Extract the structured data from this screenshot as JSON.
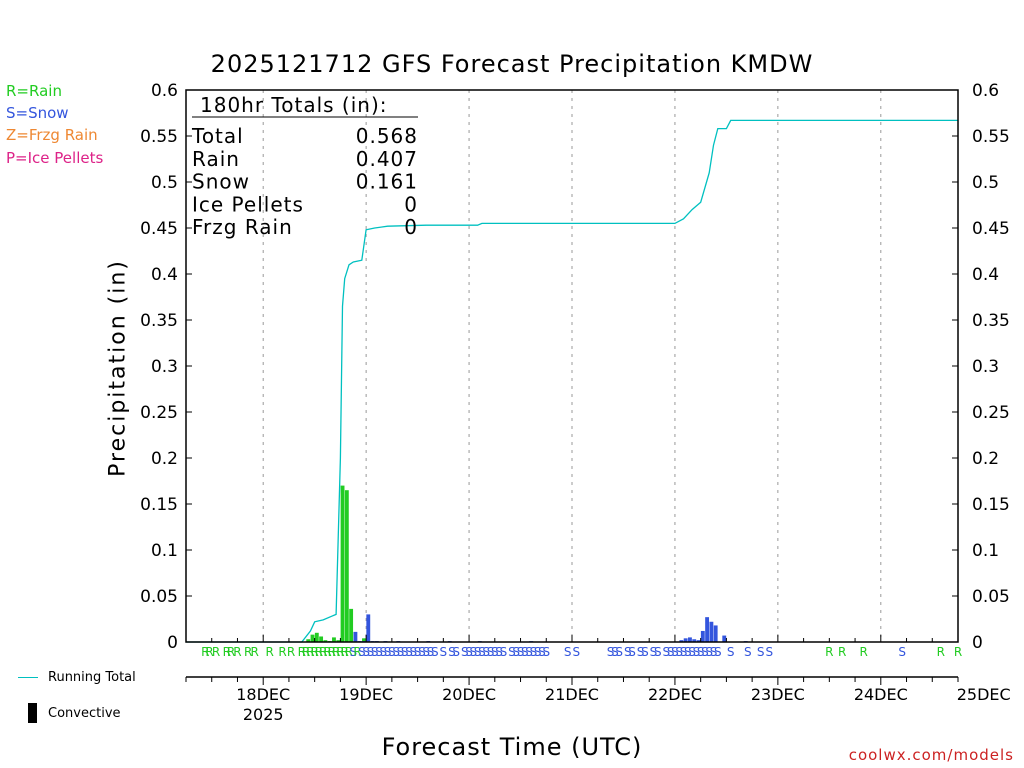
{
  "chart_data": {
    "type": "bar",
    "title": "2025121712 GFS Forecast Precipitation KMDW",
    "ylabel": "Precipitation (in)",
    "xlabel": "Forecast Time (UTC)",
    "ylim": [
      0,
      0.6
    ],
    "xlim_hours": [
      -6,
      174
    ],
    "y_ticks": [
      "0",
      "0.05",
      "0.1",
      "0.15",
      "0.2",
      "0.25",
      "0.3",
      "0.35",
      "0.4",
      "0.45",
      "0.5",
      "0.55",
      "0.6"
    ],
    "x_ticks": [
      {
        "label": "18DEC",
        "sub": "2025",
        "hour": 12
      },
      {
        "label": "19DEC",
        "sub": "",
        "hour": 36
      },
      {
        "label": "20DEC",
        "sub": "",
        "hour": 60
      },
      {
        "label": "21DEC",
        "sub": "",
        "hour": 84
      },
      {
        "label": "22DEC",
        "sub": "",
        "hour": 108
      },
      {
        "label": "23DEC",
        "sub": "",
        "hour": 132
      },
      {
        "label": "24DEC",
        "sub": "",
        "hour": 156
      },
      {
        "label": "25DEC",
        "sub": "",
        "hour": 180
      }
    ],
    "legend": [
      {
        "label": "R=Rain",
        "color": "#22cc22"
      },
      {
        "label": "S=Snow",
        "color": "#3355dd"
      },
      {
        "label": "Z=Frzg Rain",
        "color": "#ee8833"
      },
      {
        "label": "P=Ice Pellets",
        "color": "#dd2288"
      }
    ],
    "totals": {
      "header": "180hr Totals (in):",
      "rows": [
        {
          "label": "Total",
          "value": "0.568"
        },
        {
          "label": "Rain",
          "value": "0.407"
        },
        {
          "label": "Snow",
          "value": "0.161"
        },
        {
          "label": "Ice Pellets",
          "value": "0"
        },
        {
          "label": "Frzg Rain",
          "value": "0"
        }
      ]
    },
    "series": [
      {
        "name": "Rain",
        "color": "#22cc22",
        "points": [
          {
            "x": 22.5,
            "y": 0.003
          },
          {
            "x": 23.5,
            "y": 0.008
          },
          {
            "x": 24.5,
            "y": 0.01
          },
          {
            "x": 25.5,
            "y": 0.006
          },
          {
            "x": 26.5,
            "y": 0.002
          },
          {
            "x": 27.5,
            "y": 0.001
          },
          {
            "x": 28.5,
            "y": 0.005
          },
          {
            "x": 29.5,
            "y": 0.002
          },
          {
            "x": 30.5,
            "y": 0.17
          },
          {
            "x": 31.5,
            "y": 0.165
          },
          {
            "x": 32.5,
            "y": 0.036
          },
          {
            "x": 33.5,
            "y": 0.001
          },
          {
            "x": 35.5,
            "y": 0.004
          }
        ]
      },
      {
        "name": "Snow",
        "color": "#3355dd",
        "points": [
          {
            "x": 33.5,
            "y": 0.011
          },
          {
            "x": 34.5,
            "y": 0.001
          },
          {
            "x": 35.5,
            "y": 0.001
          },
          {
            "x": 36.5,
            "y": 0.03
          },
          {
            "x": 37.5,
            "y": 0.001
          },
          {
            "x": 38.5,
            "y": 0.001
          },
          {
            "x": 40.5,
            "y": 0.001
          },
          {
            "x": 43.5,
            "y": 0.001
          },
          {
            "x": 50.5,
            "y": 0.001
          },
          {
            "x": 55.5,
            "y": 0.001
          },
          {
            "x": 62.5,
            "y": 0.001
          },
          {
            "x": 74.5,
            "y": 0.001
          },
          {
            "x": 109.5,
            "y": 0.002
          },
          {
            "x": 110.5,
            "y": 0.004
          },
          {
            "x": 111.5,
            "y": 0.005
          },
          {
            "x": 112.5,
            "y": 0.003
          },
          {
            "x": 113.5,
            "y": 0.002
          },
          {
            "x": 114.5,
            "y": 0.012
          },
          {
            "x": 115.5,
            "y": 0.027
          },
          {
            "x": 116.5,
            "y": 0.022
          },
          {
            "x": 117.5,
            "y": 0.018
          },
          {
            "x": 119.5,
            "y": 0.007
          },
          {
            "x": 124.5,
            "y": 0.001
          }
        ]
      }
    ],
    "running_total": {
      "name": "Running Total",
      "color": "#00c0c0",
      "points": [
        {
          "x": -6,
          "y": 0
        },
        {
          "x": 21,
          "y": 0
        },
        {
          "x": 23,
          "y": 0.012
        },
        {
          "x": 24,
          "y": 0.022
        },
        {
          "x": 26,
          "y": 0.024
        },
        {
          "x": 28,
          "y": 0.028
        },
        {
          "x": 29,
          "y": 0.03
        },
        {
          "x": 30,
          "y": 0.2
        },
        {
          "x": 30.5,
          "y": 0.365
        },
        {
          "x": 31,
          "y": 0.395
        },
        {
          "x": 32,
          "y": 0.41
        },
        {
          "x": 33,
          "y": 0.413
        },
        {
          "x": 35,
          "y": 0.415
        },
        {
          "x": 36,
          "y": 0.448
        },
        {
          "x": 38,
          "y": 0.45
        },
        {
          "x": 41,
          "y": 0.452
        },
        {
          "x": 50,
          "y": 0.453
        },
        {
          "x": 62,
          "y": 0.453
        },
        {
          "x": 63,
          "y": 0.455
        },
        {
          "x": 80,
          "y": 0.455
        },
        {
          "x": 108,
          "y": 0.455
        },
        {
          "x": 110,
          "y": 0.46
        },
        {
          "x": 112,
          "y": 0.47
        },
        {
          "x": 114,
          "y": 0.478
        },
        {
          "x": 116,
          "y": 0.51
        },
        {
          "x": 117,
          "y": 0.54
        },
        {
          "x": 118,
          "y": 0.558
        },
        {
          "x": 120,
          "y": 0.558
        },
        {
          "x": 121,
          "y": 0.567
        },
        {
          "x": 174,
          "y": 0.567
        }
      ]
    },
    "precip_type_markers": [
      {
        "x": -1.5,
        "type": "R"
      },
      {
        "x": -0.5,
        "type": "R"
      },
      {
        "x": 1,
        "type": "R"
      },
      {
        "x": 3.5,
        "type": "R"
      },
      {
        "x": 4.5,
        "type": "R"
      },
      {
        "x": 6,
        "type": "R"
      },
      {
        "x": 8.5,
        "type": "R"
      },
      {
        "x": 10,
        "type": "R"
      },
      {
        "x": 13.5,
        "type": "R"
      },
      {
        "x": 16.5,
        "type": "R"
      },
      {
        "x": 18.5,
        "type": "R"
      },
      {
        "x": 21,
        "type": "R"
      },
      {
        "x": 22,
        "type": "R"
      },
      {
        "x": 23,
        "type": "R"
      },
      {
        "x": 24,
        "type": "R"
      },
      {
        "x": 25,
        "type": "R"
      },
      {
        "x": 26,
        "type": "R"
      },
      {
        "x": 27,
        "type": "R"
      },
      {
        "x": 28,
        "type": "R"
      },
      {
        "x": 29,
        "type": "R"
      },
      {
        "x": 30,
        "type": "R"
      },
      {
        "x": 31,
        "type": "R"
      },
      {
        "x": 32,
        "type": "R"
      },
      {
        "x": 33,
        "type": "S"
      },
      {
        "x": 34,
        "type": "R"
      },
      {
        "x": 35,
        "type": "S"
      },
      {
        "x": 36,
        "type": "S"
      },
      {
        "x": 37,
        "type": "S"
      },
      {
        "x": 38,
        "type": "S"
      },
      {
        "x": 39,
        "type": "S"
      },
      {
        "x": 40,
        "type": "S"
      },
      {
        "x": 41,
        "type": "S"
      },
      {
        "x": 42,
        "type": "S"
      },
      {
        "x": 43,
        "type": "S"
      },
      {
        "x": 44,
        "type": "S"
      },
      {
        "x": 45,
        "type": "S"
      },
      {
        "x": 46,
        "type": "S"
      },
      {
        "x": 47,
        "type": "S"
      },
      {
        "x": 48,
        "type": "S"
      },
      {
        "x": 49,
        "type": "S"
      },
      {
        "x": 50,
        "type": "S"
      },
      {
        "x": 51,
        "type": "S"
      },
      {
        "x": 52,
        "type": "S"
      },
      {
        "x": 54,
        "type": "S"
      },
      {
        "x": 56,
        "type": "S"
      },
      {
        "x": 57,
        "type": "S"
      },
      {
        "x": 59,
        "type": "S"
      },
      {
        "x": 60,
        "type": "S"
      },
      {
        "x": 61,
        "type": "S"
      },
      {
        "x": 62,
        "type": "S"
      },
      {
        "x": 63,
        "type": "S"
      },
      {
        "x": 64,
        "type": "S"
      },
      {
        "x": 65,
        "type": "S"
      },
      {
        "x": 66,
        "type": "S"
      },
      {
        "x": 67,
        "type": "S"
      },
      {
        "x": 68,
        "type": "S"
      },
      {
        "x": 70,
        "type": "S"
      },
      {
        "x": 71,
        "type": "S"
      },
      {
        "x": 72,
        "type": "S"
      },
      {
        "x": 73,
        "type": "S"
      },
      {
        "x": 74,
        "type": "S"
      },
      {
        "x": 75,
        "type": "S"
      },
      {
        "x": 76,
        "type": "S"
      },
      {
        "x": 77,
        "type": "S"
      },
      {
        "x": 78,
        "type": "S"
      },
      {
        "x": 83,
        "type": "S"
      },
      {
        "x": 85,
        "type": "S"
      },
      {
        "x": 93,
        "type": "S"
      },
      {
        "x": 94,
        "type": "S"
      },
      {
        "x": 95,
        "type": "S"
      },
      {
        "x": 97,
        "type": "S"
      },
      {
        "x": 98,
        "type": "S"
      },
      {
        "x": 100,
        "type": "S"
      },
      {
        "x": 101,
        "type": "S"
      },
      {
        "x": 103,
        "type": "S"
      },
      {
        "x": 104,
        "type": "S"
      },
      {
        "x": 106,
        "type": "S"
      },
      {
        "x": 107,
        "type": "S"
      },
      {
        "x": 108,
        "type": "S"
      },
      {
        "x": 109,
        "type": "S"
      },
      {
        "x": 110,
        "type": "S"
      },
      {
        "x": 111,
        "type": "S"
      },
      {
        "x": 112,
        "type": "S"
      },
      {
        "x": 113,
        "type": "S"
      },
      {
        "x": 114,
        "type": "S"
      },
      {
        "x": 115,
        "type": "S"
      },
      {
        "x": 116,
        "type": "S"
      },
      {
        "x": 117,
        "type": "S"
      },
      {
        "x": 118,
        "type": "S"
      },
      {
        "x": 121,
        "type": "S"
      },
      {
        "x": 125,
        "type": "S"
      },
      {
        "x": 128,
        "type": "S"
      },
      {
        "x": 130,
        "type": "S"
      },
      {
        "x": 144,
        "type": "R"
      },
      {
        "x": 147,
        "type": "R"
      },
      {
        "x": 152,
        "type": "R"
      },
      {
        "x": 161,
        "type": "S"
      },
      {
        "x": 170,
        "type": "R"
      },
      {
        "x": 174,
        "type": "R"
      }
    ],
    "key": {
      "running_total": "Running Total",
      "convective": "Convective"
    },
    "credit": "coolwx.com/models"
  }
}
